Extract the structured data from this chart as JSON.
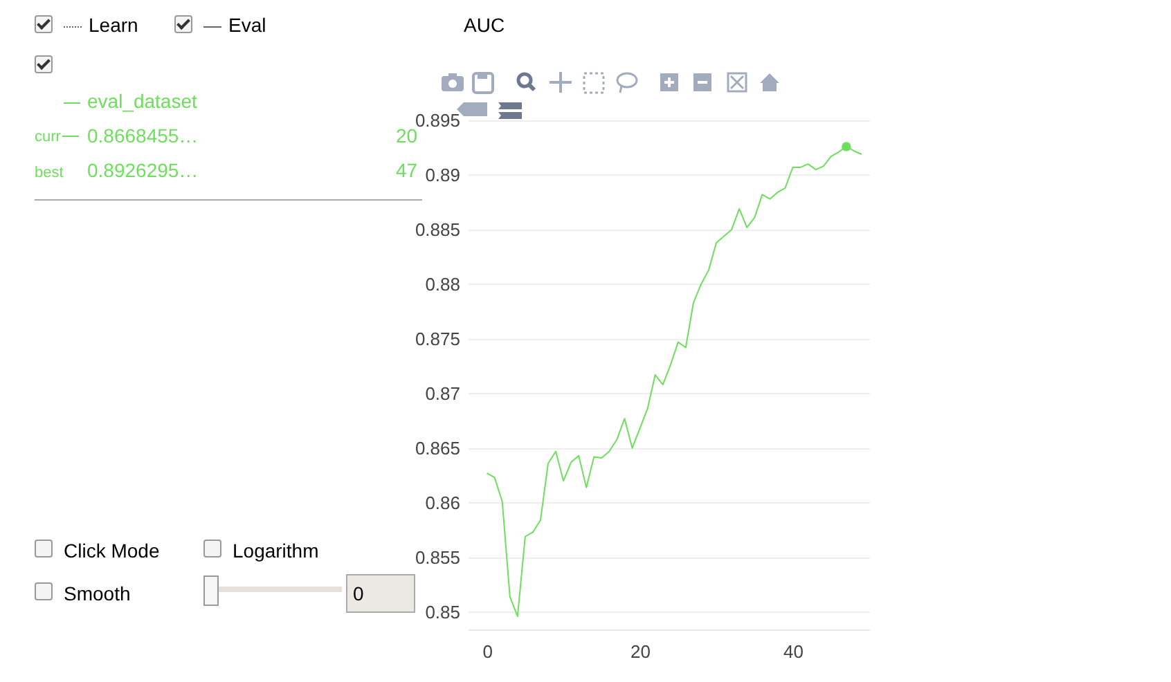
{
  "chart_data": {
    "type": "line",
    "title": "AUC",
    "x": [
      0,
      1,
      2,
      3,
      4,
      5,
      6,
      7,
      8,
      9,
      10,
      11,
      12,
      13,
      14,
      15,
      16,
      17,
      18,
      19,
      20,
      21,
      22,
      23,
      24,
      25,
      26,
      27,
      28,
      29,
      30,
      31,
      32,
      33,
      34,
      35,
      36,
      37,
      38,
      39,
      40,
      41,
      42,
      43,
      44,
      45,
      46,
      47,
      48,
      49
    ],
    "series": [
      {
        "name": "eval_dataset",
        "color": "#6ddf5c",
        "values": [
          0.8627,
          0.8623,
          0.8601,
          0.8514,
          0.8496,
          0.8569,
          0.8573,
          0.8584,
          0.8636,
          0.8647,
          0.862,
          0.8637,
          0.8643,
          0.8614,
          0.8642,
          0.8641,
          0.8647,
          0.8658,
          0.8677,
          0.865,
          0.8668,
          0.8686,
          0.8717,
          0.8708,
          0.8726,
          0.8747,
          0.8742,
          0.8783,
          0.88,
          0.8813,
          0.8838,
          0.8844,
          0.885,
          0.8869,
          0.8852,
          0.8861,
          0.8882,
          0.8878,
          0.8884,
          0.8888,
          0.8907,
          0.8907,
          0.891,
          0.8905,
          0.8908,
          0.8917,
          0.8921,
          0.8926,
          0.8922,
          0.8919
        ]
      },
      {
        "type": "scatter",
        "color": "#6ddf5c",
        "x": [
          47
        ],
        "values": [
          0.8926
        ],
        "marker": "circle"
      }
    ],
    "xlim": [
      -2.5,
      50
    ],
    "xticks": [
      0,
      20,
      40
    ],
    "ylim": [
      0.8484,
      0.895
    ],
    "yticks": [
      0.85,
      0.855,
      0.86,
      0.865,
      0.87,
      0.875,
      0.88,
      0.885,
      0.89,
      0.895
    ],
    "grid": "y",
    "annotations": [
      "Learn",
      "Eval",
      "curr",
      "0.8668455…",
      "20",
      "best",
      "0.8926295…",
      "47",
      "Click Mode",
      "Logarithm",
      "Smooth",
      "0"
    ]
  }
}
